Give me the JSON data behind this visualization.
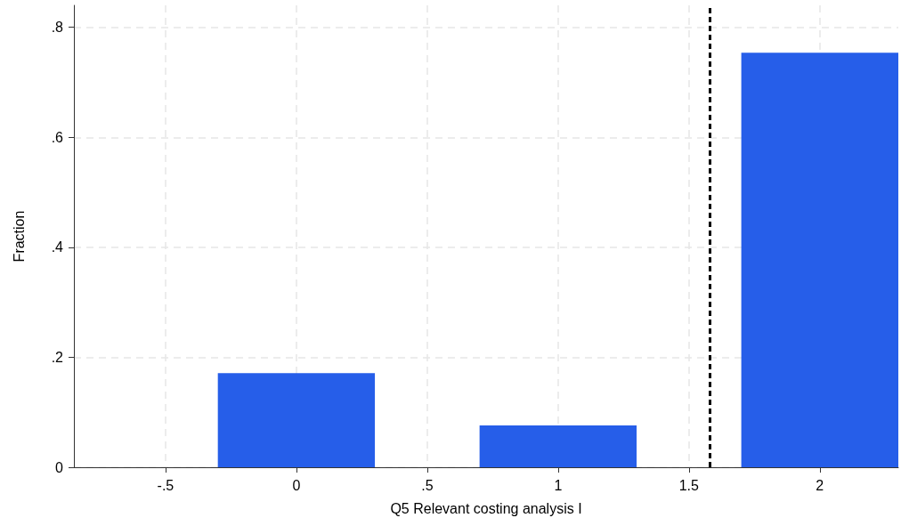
{
  "chart_data": {
    "type": "bar",
    "xlabel": "Q5 Relevant costing analysis I",
    "ylabel": "Fraction",
    "x": [
      0,
      1,
      2
    ],
    "values": [
      0.171,
      0.076,
      0.754
    ],
    "color": "#265ee9",
    "xlim": [
      -0.85,
      2.3
    ],
    "xticks": [
      {
        "value": -0.5,
        "label": "-.5"
      },
      0,
      {
        "value": 0.5,
        "label": ".5"
      },
      1,
      1.5,
      2
    ],
    "ylim": [
      0,
      0.84
    ],
    "yticks": [
      0,
      {
        "value": 0.2,
        "label": ".2"
      },
      {
        "value": 0.4,
        "label": ".4"
      },
      {
        "value": 0.6,
        "label": ".6"
      },
      {
        "value": 0.8,
        "label": ".8"
      }
    ],
    "ref_lines": [
      {
        "axis": "x",
        "value": 1.58,
        "color": "#000000",
        "line_style": "dashed"
      }
    ],
    "grid": true
  }
}
